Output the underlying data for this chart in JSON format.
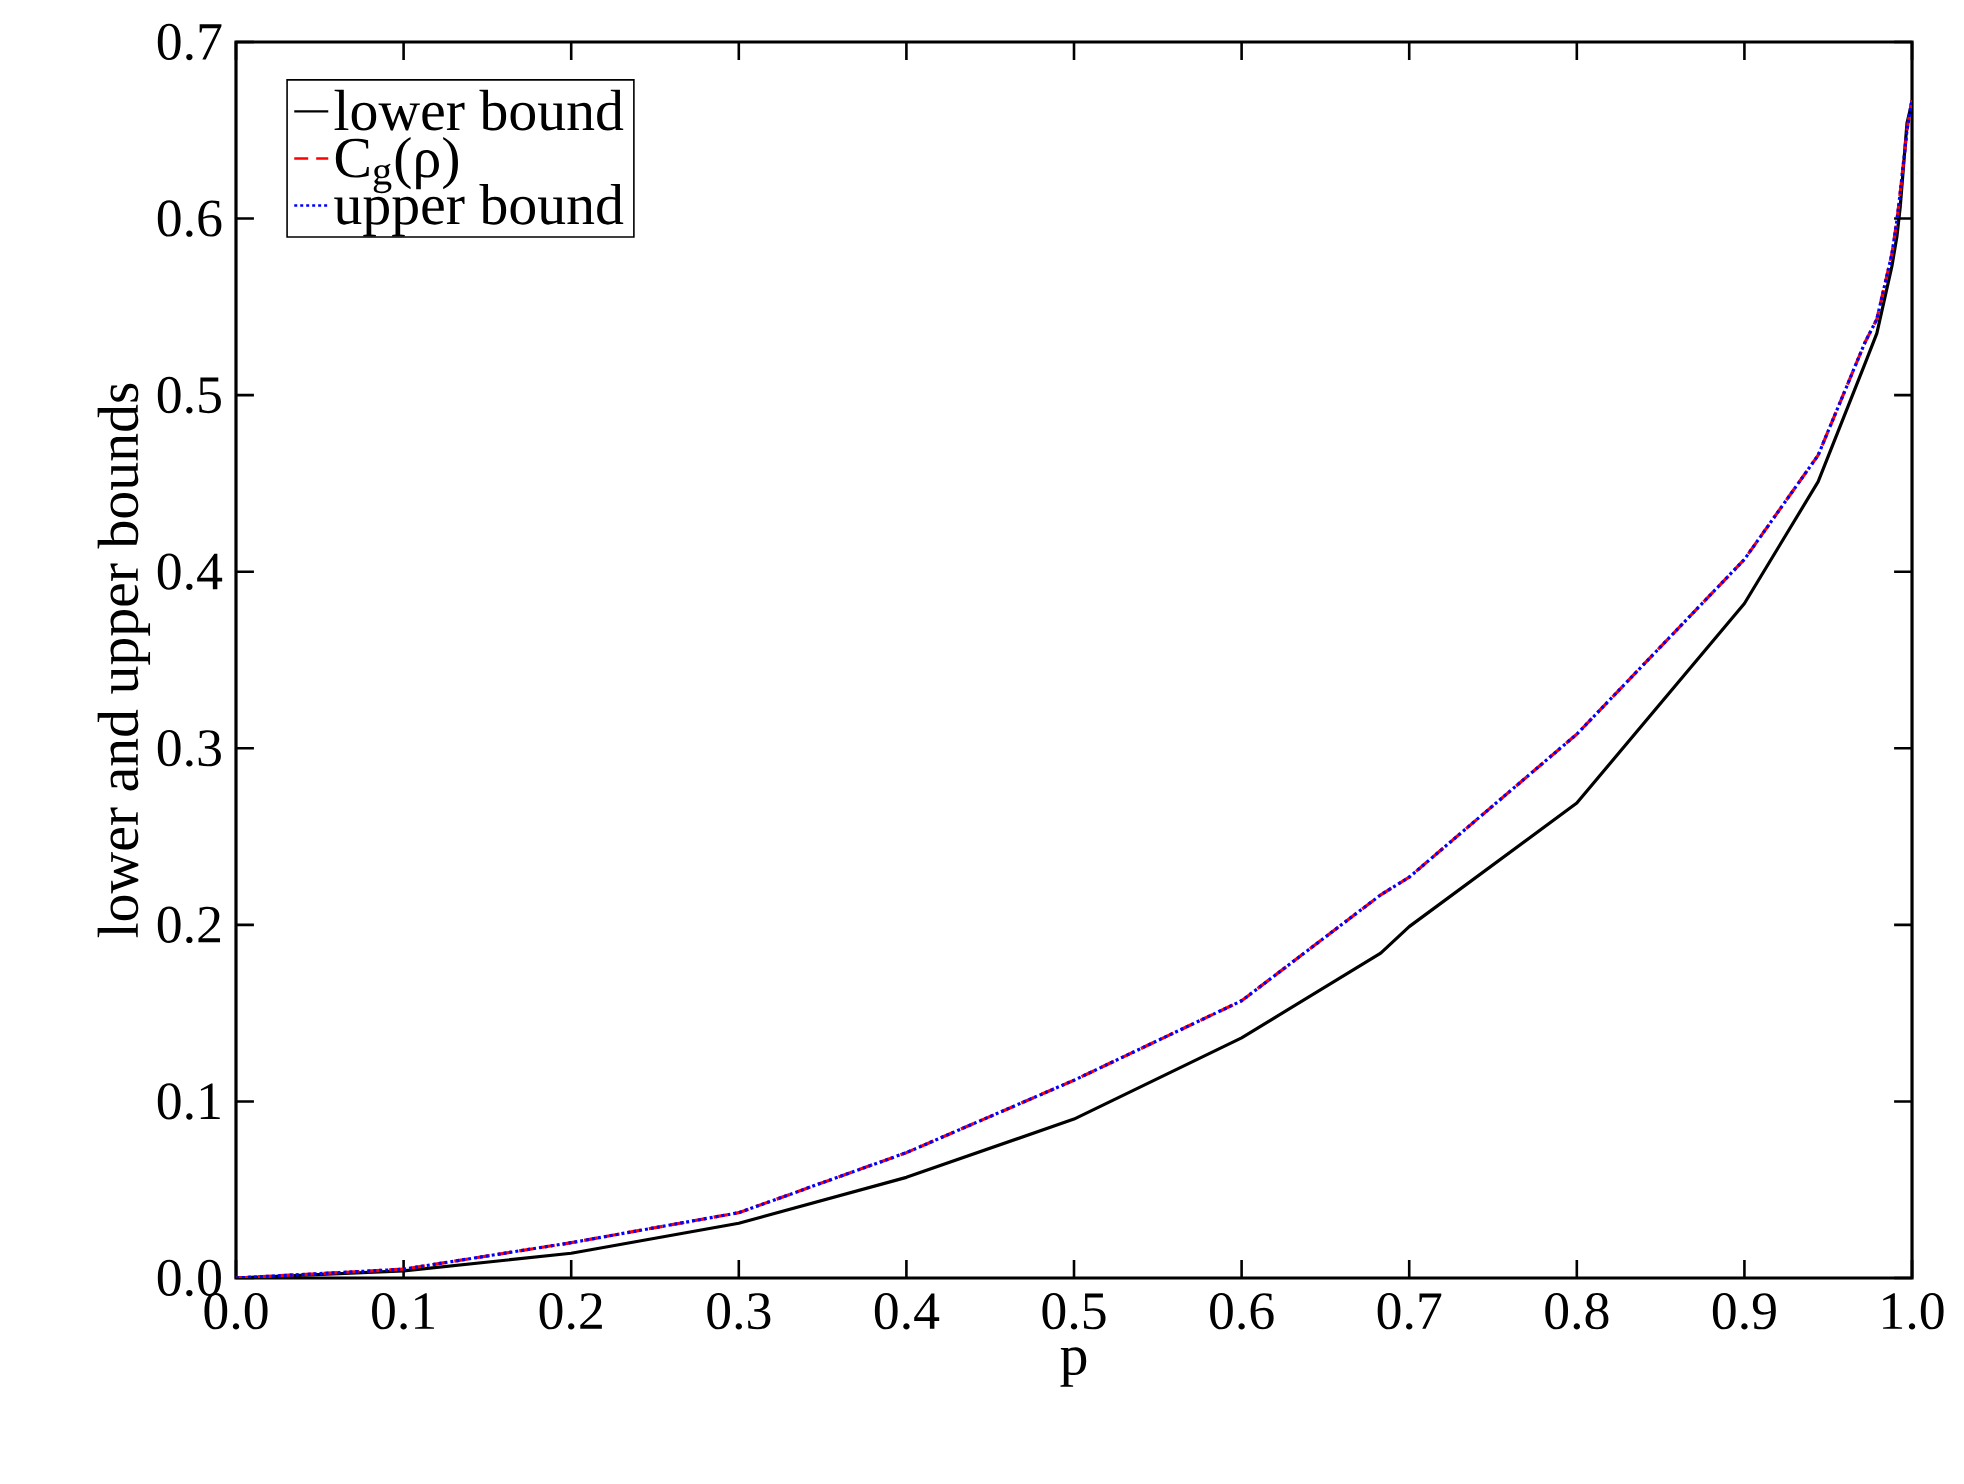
{
  "chart_data": {
    "type": "line",
    "xlabel": "p",
    "ylabel": "lower and upper bounds",
    "x": [
      0,
      0.1,
      0.2,
      0.3,
      0.4,
      0.5,
      0.6,
      0.683,
      0.7,
      0.8,
      0.9,
      0.944,
      0.972,
      0.979,
      0.988,
      0.991,
      0.993,
      0.997,
      0.999,
      1.0
    ],
    "series": [
      {
        "name": "lower bound",
        "color": "#000000",
        "line_style": "solid",
        "values": [
          0,
          0.004,
          0.014,
          0.031,
          0.057,
          0.09,
          0.136,
          0.184,
          0.199,
          0.269,
          0.382,
          0.451,
          0.518,
          0.535,
          0.573,
          0.59,
          0.607,
          0.654,
          0.662,
          0.667
        ]
      },
      {
        "name": "C$_{g}$(ρ)",
        "color": "#ff0000",
        "line_style": "dashed",
        "values": [
          0,
          0.005,
          0.02,
          0.037,
          0.071,
          0.112,
          0.157,
          0.217,
          0.227,
          0.308,
          0.407,
          0.466,
          0.53,
          0.543,
          0.58,
          0.599,
          0.615,
          0.65,
          0.662,
          0.667
        ]
      },
      {
        "name": "upper bound",
        "color": "#0000ff",
        "line_style": "dotted",
        "values": [
          0,
          0.005,
          0.02,
          0.037,
          0.071,
          0.112,
          0.157,
          0.217,
          0.227,
          0.308,
          0.407,
          0.466,
          0.53,
          0.543,
          0.58,
          0.599,
          0.615,
          0.65,
          0.662,
          0.667
        ]
      }
    ],
    "xlim": [
      0,
      1
    ],
    "ylim": [
      0,
      0.7
    ],
    "xticks": [
      {
        "value": 0,
        "label": "0.0"
      },
      0.1,
      0.2,
      0.3,
      0.4,
      0.5,
      0.6,
      0.7,
      0.8,
      0.9,
      {
        "value": 1,
        "label": "1.0"
      }
    ],
    "yticks": [
      {
        "value": 0,
        "label": "0.0"
      },
      0.1,
      0.2,
      0.3,
      0.4,
      0.5,
      0.6,
      0.7
    ],
    "legend": "top left",
    "marker": "none"
  }
}
